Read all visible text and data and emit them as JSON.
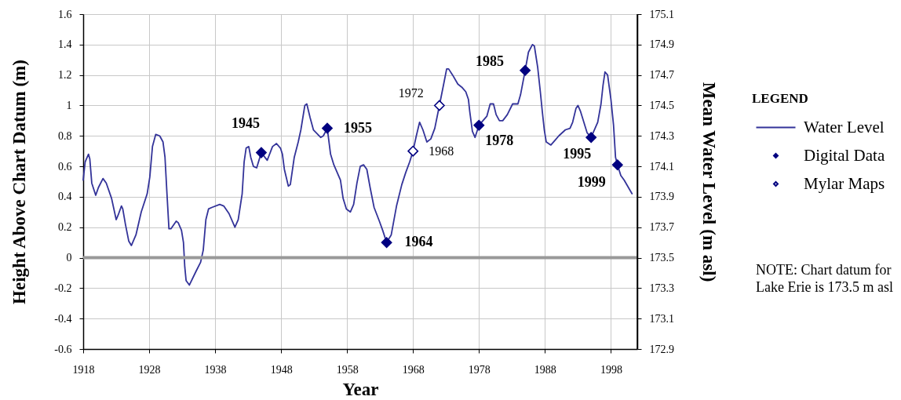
{
  "chart_data": {
    "type": "line",
    "xlabel": "Year",
    "ylabel": "Height Above Chart Datum (m)",
    "y2label": "Mean Water Level (m asl)",
    "legend_title": "LEGEND",
    "legend": "right",
    "grid": true,
    "xlim": [
      1918,
      2002
    ],
    "xticks": [
      1918,
      1928,
      1938,
      1948,
      1958,
      1968,
      1978,
      1988,
      1998
    ],
    "ylim": [
      -0.6,
      1.6
    ],
    "yticks": [
      -0.6,
      -0.4,
      -0.2,
      0,
      0.2,
      0.4,
      0.6,
      0.8,
      1,
      1.2,
      1.4,
      1.6
    ],
    "y2lim": [
      172.9,
      175.1
    ],
    "y2ticks": [
      172.9,
      173.1,
      173.3,
      173.5,
      173.7,
      173.9,
      174.1,
      174.3,
      174.5,
      174.7,
      174.9,
      175.1
    ],
    "ref_lines": [
      {
        "axis": "y",
        "value": 0,
        "color": "#999999"
      }
    ],
    "series": [
      {
        "name": "Water Level",
        "color": "#333399",
        "x": [
          1918.0,
          1918.3,
          1918.8,
          1919.0,
          1919.3,
          1919.9,
          1920.3,
          1921.0,
          1921.5,
          1922.3,
          1923.0,
          1923.3,
          1923.8,
          1924.0,
          1924.4,
          1924.9,
          1925.3,
          1926.0,
          1926.8,
          1927.7,
          1928.1,
          1928.5,
          1929.0,
          1929.6,
          1930.1,
          1930.4,
          1930.7,
          1931.0,
          1931.3,
          1932.1,
          1932.4,
          1932.9,
          1933.2,
          1933.4,
          1933.6,
          1934.1,
          1935.1,
          1935.8,
          1936.2,
          1936.6,
          1937.0,
          1937.5,
          1938.7,
          1939.3,
          1940.1,
          1941.0,
          1941.5,
          1942.1,
          1942.4,
          1942.7,
          1943.1,
          1943.4,
          1943.8,
          1944.3,
          1945.0,
          1945.9,
          1946.7,
          1947.3,
          1947.9,
          1948.2,
          1948.5,
          1949.1,
          1949.4,
          1950.0,
          1950.6,
          1951.0,
          1951.6,
          1951.9,
          1952.4,
          1952.9,
          1954.0,
          1954.4,
          1955.0,
          1955.5,
          1956.0,
          1957.0,
          1957.4,
          1957.9,
          1958.5,
          1959.0,
          1959.5,
          1960.0,
          1960.5,
          1961.0,
          1961.5,
          1962.1,
          1962.9,
          1963.4,
          1964.0,
          1964.7,
          1965.5,
          1966.3,
          1966.9,
          1967.5,
          1968.0,
          1968.5,
          1969.0,
          1969.5,
          1970.1,
          1970.7,
          1971.3,
          1972.0,
          1972.6,
          1973.1,
          1973.4,
          1974.0,
          1974.8,
          1975.4,
          1976.0,
          1976.4,
          1976.6,
          1977.0,
          1977.4,
          1978.0,
          1978.6,
          1979.2,
          1979.7,
          1980.2,
          1980.6,
          1981.1,
          1981.6,
          1982.3,
          1983.1,
          1983.9,
          1984.3,
          1985.0,
          1985.5,
          1986.1,
          1986.4,
          1986.9,
          1987.3,
          1987.6,
          1987.9,
          1988.2,
          1988.9,
          1989.5,
          1990.1,
          1991.1,
          1991.8,
          1992.2,
          1992.7,
          1993.0,
          1993.4,
          1994.4,
          1995.0,
          1996.0,
          1996.5,
          1996.8,
          1997.1,
          1997.5,
          1998.0,
          1998.4,
          1998.7,
          1999.0,
          1999.5,
          2000.0,
          2001.2
        ],
        "values": [
          0.51,
          0.63,
          0.68,
          0.65,
          0.49,
          0.41,
          0.46,
          0.52,
          0.49,
          0.39,
          0.25,
          0.28,
          0.34,
          0.32,
          0.22,
          0.11,
          0.08,
          0.15,
          0.3,
          0.42,
          0.53,
          0.73,
          0.81,
          0.8,
          0.76,
          0.66,
          0.42,
          0.19,
          0.19,
          0.24,
          0.23,
          0.18,
          0.1,
          -0.06,
          -0.15,
          -0.18,
          -0.09,
          -0.03,
          0.05,
          0.25,
          0.32,
          0.33,
          0.35,
          0.34,
          0.29,
          0.2,
          0.25,
          0.42,
          0.63,
          0.72,
          0.73,
          0.66,
          0.6,
          0.59,
          0.69,
          0.64,
          0.73,
          0.75,
          0.72,
          0.68,
          0.58,
          0.47,
          0.48,
          0.66,
          0.76,
          0.84,
          1.0,
          1.01,
          0.92,
          0.84,
          0.79,
          0.8,
          0.85,
          0.68,
          0.61,
          0.51,
          0.39,
          0.32,
          0.3,
          0.35,
          0.49,
          0.6,
          0.61,
          0.58,
          0.46,
          0.33,
          0.24,
          0.18,
          0.1,
          0.15,
          0.34,
          0.48,
          0.56,
          0.63,
          0.7,
          0.8,
          0.89,
          0.84,
          0.76,
          0.78,
          0.85,
          1.0,
          1.13,
          1.24,
          1.24,
          1.2,
          1.14,
          1.12,
          1.09,
          1.04,
          0.96,
          0.83,
          0.79,
          0.87,
          0.9,
          0.93,
          1.01,
          1.01,
          0.94,
          0.9,
          0.9,
          0.94,
          1.01,
          1.01,
          1.07,
          1.23,
          1.35,
          1.4,
          1.39,
          1.25,
          1.09,
          0.96,
          0.84,
          0.76,
          0.74,
          0.77,
          0.8,
          0.84,
          0.85,
          0.89,
          0.98,
          1.0,
          0.96,
          0.82,
          0.79,
          0.89,
          1.01,
          1.13,
          1.22,
          1.2,
          1.04,
          0.87,
          0.66,
          0.61,
          0.54,
          0.51,
          0.42
        ]
      },
      {
        "name": "Digital Data",
        "type": "scatter",
        "color": "#000080",
        "marker": "diamond",
        "x": [
          1945,
          1955,
          1964,
          1978,
          1985,
          1995,
          1999
        ],
        "values": [
          0.69,
          0.85,
          0.1,
          0.87,
          1.23,
          0.79,
          0.61
        ]
      },
      {
        "name": "Mylar Maps",
        "type": "scatter",
        "color": "#000080",
        "marker": "diamond",
        "x": [
          1968,
          1972
        ],
        "values": [
          0.7,
          1.0
        ]
      }
    ],
    "annotations": [
      {
        "text": "1945",
        "x": 1945,
        "y": 0.69
      },
      {
        "text": "1955",
        "x": 1955,
        "y": 0.85
      },
      {
        "text": "1964",
        "x": 1964,
        "y": 0.1
      },
      {
        "text": "1968",
        "x": 1968,
        "y": 0.7
      },
      {
        "text": "1972",
        "x": 1972,
        "y": 1.0
      },
      {
        "text": "1978",
        "x": 1978,
        "y": 0.87
      },
      {
        "text": "1985",
        "x": 1985,
        "y": 1.23
      },
      {
        "text": "1995",
        "x": 1995,
        "y": 0.79
      },
      {
        "text": "1999",
        "x": 1999,
        "y": 0.61
      },
      "NOTE: Chart datum for\nLake Erie is 173.5 m asl"
    ]
  }
}
